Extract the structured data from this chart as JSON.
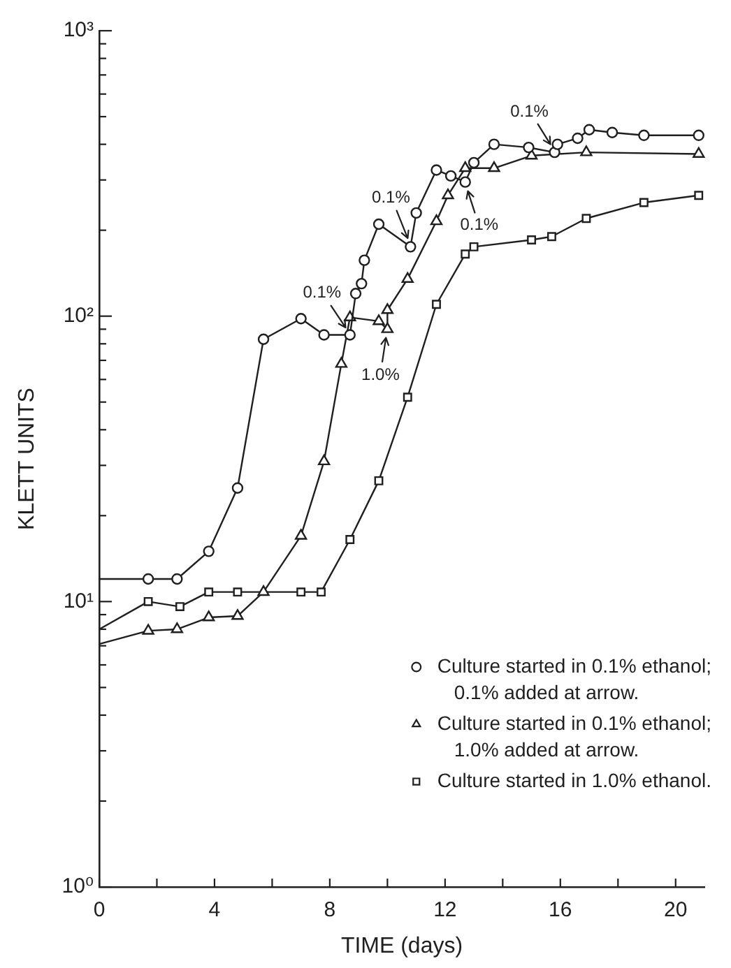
{
  "chart_data": {
    "type": "line",
    "xlabel": "TIME (days)",
    "ylabel": "KLETT UNITS",
    "log": true,
    "xlim": [
      0,
      21
    ],
    "xticks": [
      0,
      {
        "value": 2,
        "label": null
      },
      4,
      {
        "value": 6,
        "label": null
      },
      8,
      {
        "value": 10,
        "label": null
      },
      12,
      {
        "value": 14,
        "label": null
      },
      16,
      {
        "value": 18,
        "label": null
      },
      20
    ],
    "ylim": [
      1,
      1000
    ],
    "yticks": [
      {
        "value": 1,
        "label": "10⁰"
      },
      {
        "value": 2,
        "label": null
      },
      {
        "value": 3,
        "label": null
      },
      {
        "value": 4,
        "label": null
      },
      {
        "value": 5,
        "label": null
      },
      {
        "value": 6,
        "label": null
      },
      {
        "value": 7,
        "label": null
      },
      {
        "value": 8,
        "label": null
      },
      {
        "value": 9,
        "label": null
      },
      {
        "value": 10,
        "label": "10¹"
      },
      {
        "value": 20,
        "label": null
      },
      {
        "value": 30,
        "label": null
      },
      {
        "value": 40,
        "label": null
      },
      {
        "value": 50,
        "label": null
      },
      {
        "value": 60,
        "label": null
      },
      {
        "value": 70,
        "label": null
      },
      {
        "value": 80,
        "label": null
      },
      {
        "value": 90,
        "label": null
      },
      {
        "value": 100,
        "label": "10²"
      },
      {
        "value": 200,
        "label": null
      },
      {
        "value": 300,
        "label": null
      },
      {
        "value": 400,
        "label": null
      },
      {
        "value": 500,
        "label": null
      },
      {
        "value": 600,
        "label": null
      },
      {
        "value": 700,
        "label": null
      },
      {
        "value": 800,
        "label": null
      },
      {
        "value": 900,
        "label": null
      },
      {
        "value": 1000,
        "label": "10³"
      }
    ],
    "legend": "bottom right",
    "series": [
      {
        "name": "Culture started in 0.1% ethanol; 0.1% added at arrow.",
        "color": "#1f1f1f",
        "marker": "circle",
        "x": [
          1.7,
          2.7,
          3.8,
          4.8,
          5.7,
          7.0,
          7.8,
          8.7,
          8.9,
          9.1,
          9.2,
          9.7,
          10.8,
          11.0,
          11.7,
          12.2,
          12.7,
          13.0,
          13.7,
          14.9,
          15.8,
          15.9,
          16.6,
          17.0,
          17.8,
          18.9,
          20.8
        ],
        "values": [
          12,
          12,
          15,
          25,
          83,
          98,
          86,
          86,
          120,
          130,
          157,
          210,
          175,
          230,
          325,
          310,
          295,
          345,
          400,
          390,
          375,
          400,
          420,
          450,
          440,
          430,
          430
        ]
      },
      {
        "name": "Culture started in 0.1% ethanol; 1.0% added at arrow.",
        "color": "#1f1f1f",
        "marker": "triangle",
        "x": [
          1.7,
          2.7,
          3.8,
          4.8,
          5.7,
          7.0,
          7.8,
          8.4,
          8.7,
          9.7,
          10.0,
          10.0,
          10.7,
          11.7,
          12.1,
          12.7,
          13.7,
          15.0,
          16.9,
          20.8
        ],
        "values": [
          7.9,
          8,
          8.8,
          8.9,
          10.8,
          17,
          31,
          68,
          99,
          96,
          90,
          105,
          135,
          215,
          265,
          330,
          330,
          365,
          375,
          370
        ]
      },
      {
        "name": "Culture started in 1.0% ethanol.",
        "color": "#1f1f1f",
        "marker": "square",
        "x": [
          1.7,
          2.8,
          3.8,
          4.8,
          7.0,
          7.7,
          8.7,
          9.7,
          10.7,
          11.7,
          12.7,
          13.0,
          15.0,
          15.7,
          16.9,
          18.9,
          20.8
        ],
        "values": [
          10,
          9.6,
          10.8,
          10.8,
          10.8,
          10.8,
          16.5,
          26.5,
          52,
          110,
          165,
          175,
          185,
          190,
          220,
          250,
          265
        ]
      },
      {
        "color": "#1f1f1f",
        "x": [
          0,
          1.7
        ],
        "values": [
          12,
          12
        ]
      },
      {
        "color": "#1f1f1f",
        "x": [
          0,
          1.7
        ],
        "values": [
          7.1,
          7.9
        ]
      },
      {
        "color": "#1f1f1f",
        "x": [
          0,
          1.7
        ],
        "values": [
          8,
          10
        ]
      }
    ],
    "annotations": [
      {
        "text": "0.1%",
        "x": 8.7,
        "y": 86
      },
      {
        "text": "0.1%",
        "x": 10.8,
        "y": 175
      },
      {
        "text": "0.1%",
        "x": 12.7,
        "y": 295
      },
      {
        "text": "0.1%",
        "x": 15.8,
        "y": 375
      },
      {
        "text": "1.0%",
        "x": 10.0,
        "y": 90
      }
    ]
  }
}
